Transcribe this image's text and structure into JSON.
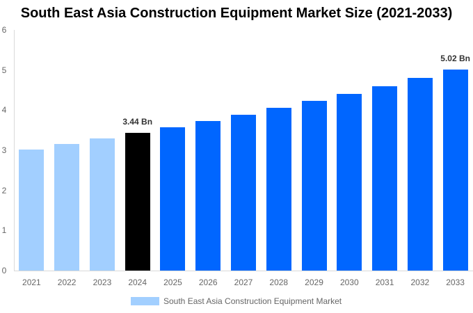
{
  "title": "South East Asia Construction Equipment Market Size (2021-2033)",
  "colors": {
    "historical": "#a2cfff",
    "base_year": "#000000",
    "forecast": "#0066ff",
    "axis": "#d9d9d9",
    "tick_text": "#666666"
  },
  "legend": {
    "label": "South East Asia Construction Equipment Market"
  },
  "y_ticks": [
    "0",
    "1",
    "2",
    "3",
    "4",
    "5",
    "6"
  ],
  "annotations": {
    "a2024": "3.44 Bn",
    "a2033": "5.02 Bn"
  },
  "chart_data": {
    "type": "bar",
    "title": "South East Asia Construction Equipment Market Size (2021-2033)",
    "xlabel": "",
    "ylabel": "",
    "ylim": [
      0,
      6
    ],
    "grid": false,
    "legend_position": "bottom",
    "categories": [
      "2021",
      "2022",
      "2023",
      "2024",
      "2025",
      "2026",
      "2027",
      "2028",
      "2029",
      "2030",
      "2031",
      "2032",
      "2033"
    ],
    "series": [
      {
        "name": "South East Asia Construction Equipment Market",
        "values": [
          3.02,
          3.16,
          3.3,
          3.44,
          3.58,
          3.73,
          3.89,
          4.06,
          4.23,
          4.41,
          4.6,
          4.8,
          5.02
        ]
      }
    ],
    "bar_colors": [
      "#a2cfff",
      "#a2cfff",
      "#a2cfff",
      "#000000",
      "#0066ff",
      "#0066ff",
      "#0066ff",
      "#0066ff",
      "#0066ff",
      "#0066ff",
      "#0066ff",
      "#0066ff",
      "#0066ff"
    ],
    "annotations": [
      {
        "category": "2024",
        "text": "3.44 Bn"
      },
      {
        "category": "2033",
        "text": "5.02 Bn"
      }
    ]
  }
}
